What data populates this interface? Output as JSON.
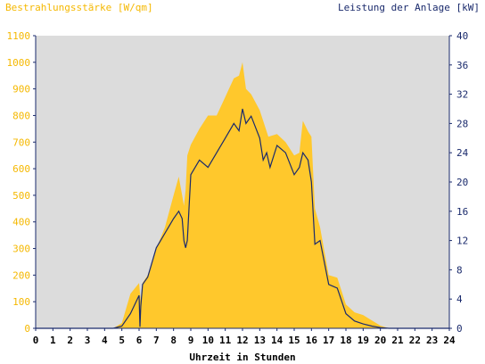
{
  "chart_data": {
    "type": "area",
    "ylabel_left": "Bestrahlungsstärke [W/qm]",
    "ylabel_right": "Leistung der Anlage [kW]",
    "xlabel": "Uhrzeit in Stunden",
    "xlim": [
      0,
      24
    ],
    "ylim_left": [
      0,
      1100
    ],
    "ylim_right": [
      0,
      40
    ],
    "x_ticks": [
      "0",
      "1",
      "2",
      "3",
      "4",
      "5",
      "6",
      "7",
      "8",
      "9",
      "10",
      "11",
      "12",
      "13",
      "14",
      "15",
      "16",
      "17",
      "18",
      "19",
      "20",
      "21",
      "22",
      "23",
      "24"
    ],
    "y_ticks_left": [
      "0",
      "100",
      "200",
      "300",
      "400",
      "500",
      "600",
      "700",
      "800",
      "900",
      "1000",
      "1100"
    ],
    "y_ticks_right": [
      "0",
      "4",
      "8",
      "12",
      "16",
      "20",
      "24",
      "28",
      "32",
      "36",
      "40"
    ],
    "colors": {
      "irradiance_fill": "#ffc82c",
      "power_line": "#1a2a6c",
      "plot_background": "#dcdcdc",
      "left_axis_text": "#f5b800",
      "right_axis_text": "#1a2a6c"
    },
    "series": [
      {
        "axis": "left",
        "x": [
          0,
          4.5,
          5,
          5.5,
          6,
          6.1,
          6.2,
          6.5,
          7,
          7.5,
          8,
          8.3,
          8.5,
          8.6,
          8.7,
          8.8,
          9,
          9.5,
          10,
          10.5,
          11,
          11.5,
          11.8,
          12,
          12.2,
          12.5,
          13,
          13.5,
          14,
          14.5,
          15,
          15.3,
          15.5,
          15.8,
          16,
          16.2,
          16.5,
          17,
          17.5,
          18,
          18.5,
          19,
          19.5,
          20,
          20.5,
          21,
          24
        ],
        "values": [
          0,
          0,
          20,
          130,
          170,
          100,
          170,
          200,
          300,
          380,
          500,
          570,
          500,
          460,
          520,
          650,
          690,
          750,
          800,
          800,
          870,
          940,
          950,
          1000,
          900,
          880,
          820,
          720,
          730,
          700,
          650,
          660,
          780,
          740,
          720,
          450,
          380,
          200,
          190,
          90,
          60,
          50,
          30,
          10,
          0,
          0,
          0
        ]
      },
      {
        "axis": "right",
        "x": [
          0,
          4.5,
          5,
          5.5,
          6,
          6.05,
          6.1,
          6.2,
          6.5,
          7,
          7.5,
          8,
          8.3,
          8.5,
          8.6,
          8.7,
          8.8,
          9,
          9.5,
          10,
          10.5,
          11,
          11.5,
          11.8,
          12,
          12.2,
          12.5,
          13,
          13.2,
          13.4,
          13.6,
          14,
          14.5,
          15,
          15.3,
          15.5,
          15.8,
          16,
          16.2,
          16.5,
          17,
          17.5,
          18,
          18.5,
          19,
          19.5,
          20,
          20.5,
          21,
          24
        ],
        "values": [
          0,
          0,
          0.3,
          2,
          4.5,
          0.2,
          3,
          6,
          7,
          11,
          13,
          15,
          16,
          15,
          12,
          11,
          12,
          21,
          23,
          22,
          24,
          26,
          28,
          27,
          30,
          28,
          29,
          26,
          23,
          24,
          22,
          25,
          24,
          21,
          22,
          24,
          23,
          20,
          11.5,
          12,
          6,
          5.5,
          2,
          1,
          0.6,
          0.3,
          0.1,
          0,
          0,
          0
        ]
      }
    ]
  }
}
